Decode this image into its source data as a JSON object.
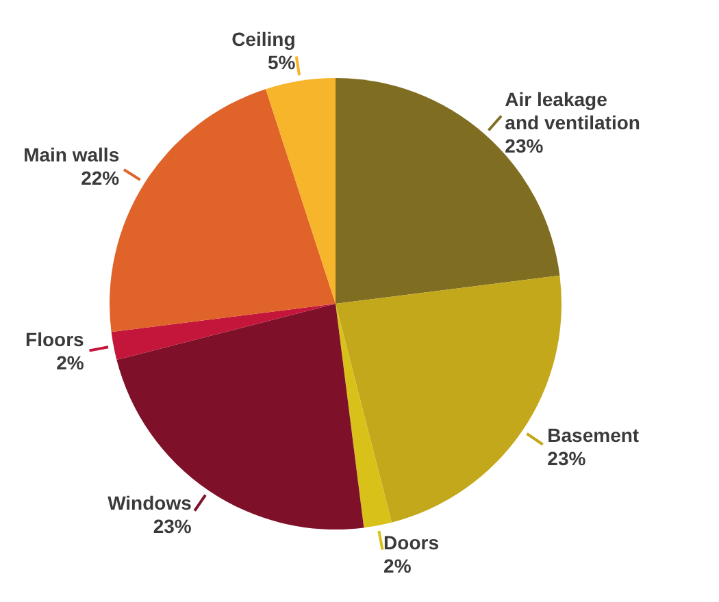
{
  "chart_data": {
    "type": "pie",
    "categories": [
      "Air leakage\nand ventilation",
      "Basement",
      "Doors",
      "Windows",
      "Floors",
      "Main walls",
      "Ceiling"
    ],
    "values": [
      23,
      23,
      2,
      23,
      2,
      22,
      5
    ],
    "value_labels": [
      "23%",
      "23%",
      "2%",
      "23%",
      "2%",
      "22%",
      "5%"
    ],
    "colors": [
      "#7f6e22",
      "#c3a81c",
      "#d8c21a",
      "#7e1129",
      "#c4163a",
      "#e0632a",
      "#f7b52b"
    ],
    "legend": false
  }
}
